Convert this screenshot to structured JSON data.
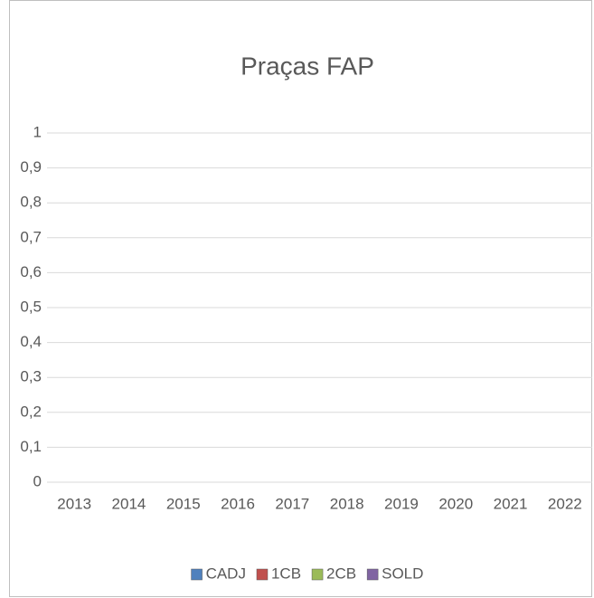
{
  "chart_data": {
    "type": "bar",
    "title": "Praças FAP",
    "categories": [
      "2013",
      "2014",
      "2015",
      "2016",
      "2017",
      "2018",
      "2019",
      "2020",
      "2021",
      "2022"
    ],
    "series": [
      {
        "name": "CADJ",
        "color": "#4f81bd",
        "values": [
          0,
          0,
          0,
          0,
          0,
          0,
          0,
          0,
          0,
          0
        ]
      },
      {
        "name": "1CB",
        "color": "#c0504d",
        "values": [
          0,
          0,
          0,
          0,
          0,
          0,
          0,
          0,
          0,
          0
        ]
      },
      {
        "name": "2CB",
        "color": "#9bbb59",
        "values": [
          0,
          0,
          0,
          0,
          0,
          0,
          0,
          0,
          0,
          0
        ]
      },
      {
        "name": "SOLD",
        "color": "#8064a2",
        "values": [
          0,
          0,
          0,
          0,
          0,
          0,
          0,
          0,
          0,
          0
        ]
      }
    ],
    "ylim": [
      0,
      1
    ],
    "yticks": [
      0,
      {
        "value": 0.1,
        "label": "0,1"
      },
      {
        "value": 0.2,
        "label": "0,2"
      },
      {
        "value": 0.3,
        "label": "0,3"
      },
      {
        "value": 0.4,
        "label": "0,4"
      },
      {
        "value": 0.5,
        "label": "0,5"
      },
      {
        "value": 0.6,
        "label": "0,6"
      },
      {
        "value": 0.7,
        "label": "0,7"
      },
      {
        "value": 0.8,
        "label": "0,8"
      },
      {
        "value": 0.9,
        "label": "0,9"
      },
      1
    ],
    "grid": true,
    "legend": "bottom"
  }
}
